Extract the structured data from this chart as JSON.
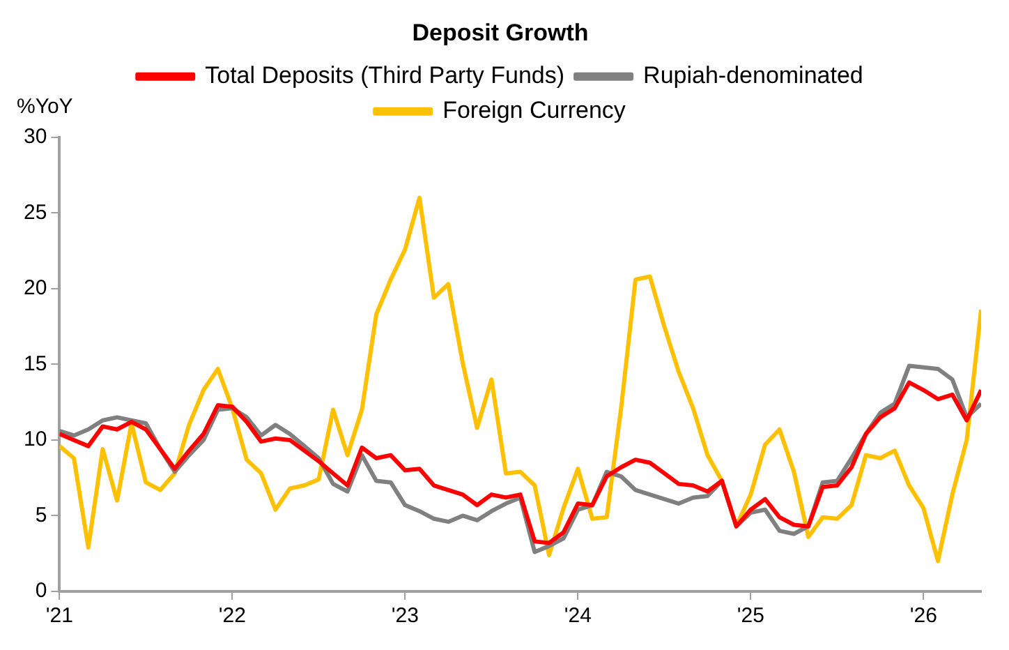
{
  "chart_data": {
    "type": "line",
    "title": "Deposit Growth",
    "ylabel": "%YoY",
    "x": [
      "2021-01",
      "2021-02",
      "2021-03",
      "2021-04",
      "2021-05",
      "2021-06",
      "2021-07",
      "2021-08",
      "2021-09",
      "2021-10",
      "2021-11",
      "2021-12",
      "2022-01",
      "2022-02",
      "2022-03",
      "2022-04",
      "2022-05",
      "2022-06",
      "2022-07",
      "2022-08",
      "2022-09",
      "2022-10",
      "2022-11",
      "2022-12",
      "2023-01",
      "2023-02",
      "2023-03",
      "2023-04",
      "2023-05",
      "2023-06",
      "2023-07",
      "2023-08",
      "2023-09",
      "2023-10",
      "2023-11",
      "2023-12",
      "2024-01",
      "2024-02",
      "2024-03",
      "2024-04",
      "2024-05",
      "2024-06",
      "2024-07",
      "2024-08",
      "2024-09",
      "2024-10",
      "2024-11",
      "2024-12",
      "2025-01",
      "2025-02",
      "2025-03",
      "2025-04",
      "2025-05",
      "2025-06",
      "2025-07",
      "2025-08",
      "2025-09",
      "2025-10",
      "2025-11",
      "2025-12",
      "2026-01",
      "2026-02",
      "2026-03",
      "2026-04",
      "2026-05"
    ],
    "series": [
      {
        "name": "Total Deposits (Third Party Funds)",
        "color": "#ff0000",
        "values": [
          10.4,
          10.0,
          9.6,
          10.9,
          10.7,
          11.2,
          10.7,
          9.4,
          8.1,
          9.3,
          10.4,
          12.3,
          12.2,
          11.2,
          9.9,
          10.1,
          10.0,
          9.3,
          8.6,
          7.8,
          7.0,
          9.5,
          8.8,
          9.0,
          8.0,
          8.1,
          7.0,
          6.7,
          6.4,
          5.7,
          6.4,
          6.2,
          6.4,
          3.3,
          3.2,
          3.9,
          5.8,
          5.7,
          7.6,
          8.2,
          8.7,
          8.5,
          7.8,
          7.1,
          7.0,
          6.6,
          7.3,
          4.3,
          5.4,
          6.1,
          4.9,
          4.4,
          4.3,
          6.9,
          7.0,
          8.2,
          10.4,
          11.5,
          12.1,
          13.8,
          13.3,
          12.7,
          13.0,
          11.3,
          13.3
        ]
      },
      {
        "name": "Rupiah-denominated",
        "color": "#808080",
        "values": [
          10.6,
          10.3,
          10.7,
          11.3,
          11.5,
          11.3,
          11.1,
          9.4,
          7.9,
          9.0,
          10.0,
          12.0,
          12.1,
          11.5,
          10.3,
          11.0,
          10.4,
          9.6,
          8.8,
          7.1,
          6.6,
          9.0,
          7.3,
          7.2,
          5.7,
          5.3,
          4.8,
          4.6,
          5.0,
          4.7,
          5.3,
          5.8,
          6.2,
          2.6,
          3.0,
          3.5,
          5.4,
          5.7,
          7.9,
          7.6,
          6.7,
          6.4,
          6.1,
          5.8,
          6.2,
          6.3,
          7.3,
          4.3,
          5.2,
          5.4,
          4.0,
          3.8,
          4.3,
          7.2,
          7.3,
          8.8,
          10.4,
          11.8,
          12.4,
          14.9,
          14.8,
          14.7,
          14.0,
          11.5,
          12.4
        ]
      },
      {
        "name": "Foreign Currency",
        "color": "#ffc000",
        "values": [
          9.6,
          8.8,
          2.9,
          9.4,
          6.0,
          11.1,
          7.2,
          6.7,
          7.8,
          11.0,
          13.3,
          14.7,
          12.1,
          8.7,
          7.8,
          5.4,
          6.8,
          7.0,
          7.4,
          12.0,
          9.0,
          12.0,
          18.3,
          20.6,
          22.6,
          26.0,
          19.4,
          20.3,
          15.1,
          10.8,
          14.0,
          7.8,
          7.9,
          7.0,
          2.4,
          5.5,
          8.1,
          4.8,
          4.9,
          12.1,
          20.6,
          20.8,
          17.5,
          14.5,
          12.1,
          9.0,
          7.3,
          4.3,
          6.4,
          9.7,
          10.7,
          7.9,
          3.6,
          4.9,
          4.8,
          5.7,
          9.0,
          8.8,
          9.3,
          7.0,
          5.5,
          2.0,
          6.4,
          10.0,
          18.6
        ]
      }
    ],
    "xlim": [
      "2021-01",
      "2026-05"
    ],
    "xticks": [
      {
        "value": "2021-01",
        "label": "'21"
      },
      {
        "value": "2022-01",
        "label": "'22"
      },
      {
        "value": "2023-01",
        "label": "'23"
      },
      {
        "value": "2024-01",
        "label": "'24"
      },
      {
        "value": "2025-01",
        "label": "'25"
      },
      {
        "value": "2026-01",
        "label": "'26"
      }
    ],
    "ylim": [
      0,
      30
    ],
    "yticks": [
      0,
      5,
      10,
      15,
      20,
      25,
      30
    ],
    "legend": "top",
    "grid": false,
    "marker": "none",
    "line_style": "solid"
  }
}
